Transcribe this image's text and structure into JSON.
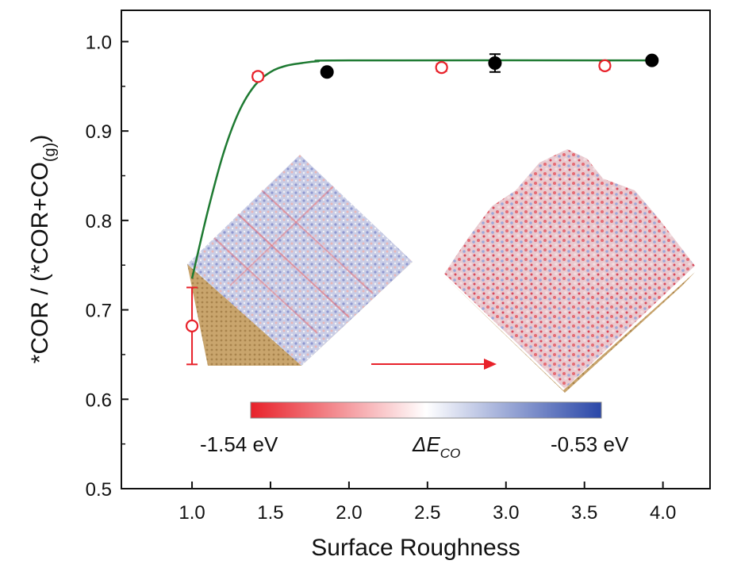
{
  "chart_data": {
    "type": "scatter",
    "title": "",
    "xlabel": "Surface Roughness",
    "ylabel_main": "*COR / (*COR+CO",
    "ylabel_sub": "(g)",
    "ylabel_end": ")",
    "xlim": [
      0.55,
      4.3
    ],
    "ylim": [
      0.5,
      1.035
    ],
    "x_ticks": [
      1.0,
      1.5,
      2.0,
      2.5,
      3.0,
      3.5,
      4.0
    ],
    "x_tick_labels": [
      "1.0",
      "1.5",
      "2.0",
      "2.5",
      "3.0",
      "3.5",
      "4.0"
    ],
    "y_ticks": [
      0.5,
      0.6,
      0.7,
      0.8,
      0.9,
      1.0
    ],
    "y_tick_labels": [
      "0.5",
      "0.6",
      "0.7",
      "0.8",
      "0.9",
      "1.0"
    ],
    "series": [
      {
        "marker": "open-circle",
        "color": "#e8212a",
        "points": [
          {
            "x": 1.0,
            "y": 0.682,
            "err": 0.043
          },
          {
            "x": 1.42,
            "y": 0.961,
            "err": 0.004
          },
          {
            "x": 2.59,
            "y": 0.971,
            "err": 0.004
          },
          {
            "x": 3.63,
            "y": 0.973,
            "err": 0.004
          }
        ]
      },
      {
        "marker": "filled-circle",
        "color": "#000000",
        "points": [
          {
            "x": 1.86,
            "y": 0.966,
            "err": 0.0
          },
          {
            "x": 2.93,
            "y": 0.976,
            "err": 0.01
          },
          {
            "x": 3.93,
            "y": 0.979,
            "err": 0.0
          }
        ]
      }
    ],
    "fit_curve": {
      "color": "#1e7a32",
      "x_range": [
        1.0,
        3.93
      ],
      "points": [
        [
          1.0,
          0.735
        ],
        [
          1.1,
          0.81
        ],
        [
          1.2,
          0.875
        ],
        [
          1.3,
          0.922
        ],
        [
          1.4,
          0.951
        ],
        [
          1.5,
          0.966
        ],
        [
          1.6,
          0.973
        ],
        [
          1.7,
          0.976
        ],
        [
          1.8,
          0.978
        ],
        [
          2.0,
          0.979
        ],
        [
          3.93,
          0.979
        ]
      ]
    },
    "colorbar": {
      "min_label": "-1.54 eV",
      "max_label": "-0.53 eV",
      "title_main": "ΔE",
      "title_sub": "CO",
      "color_low": "#e8212a",
      "color_mid": "#ffffff",
      "color_high": "#2a47a8"
    },
    "annotation_arrow_color": "#e8212a"
  }
}
